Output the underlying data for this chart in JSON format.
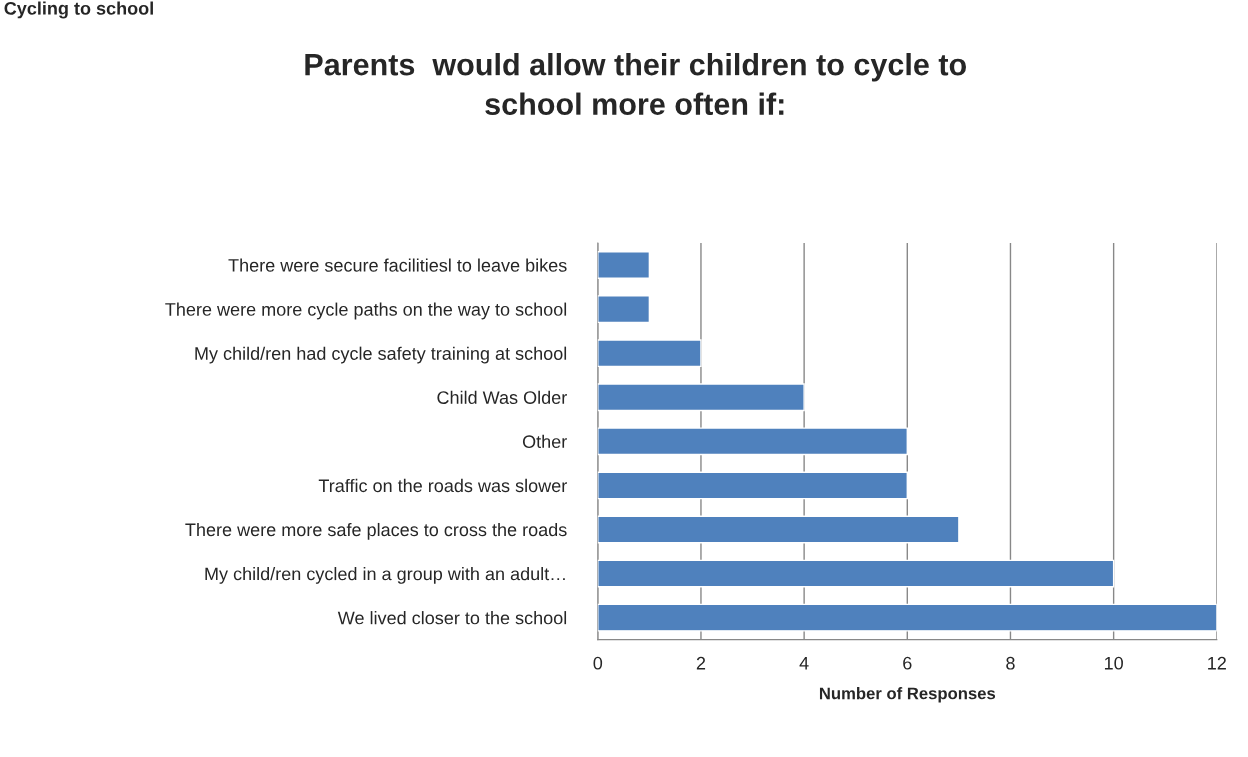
{
  "chart_data": {
    "type": "bar",
    "orientation": "horizontal",
    "title": "Parents  would allow their children to cycle to\nschool more often if:",
    "xlabel": "Number of Responses",
    "annotations": [
      "Cycling to school"
    ],
    "categories": [
      "There were secure facilitiesl to leave bikes",
      "There were more cycle paths on the way to school",
      "My child/ren had cycle safety training at school",
      "Child Was Older",
      "Other",
      "Traffic on the roads was slower",
      "There were more safe places to cross the roads",
      "My child/ren cycled in a group with an adult…",
      "We lived closer to the school"
    ],
    "values": [
      1,
      1,
      2,
      4,
      6,
      6,
      7,
      10,
      12
    ],
    "color": "#4f81bd",
    "xlim": [
      0,
      12
    ],
    "xticks": [
      0,
      2,
      4,
      6,
      8,
      10,
      12
    ],
    "grid": "x",
    "legend": false
  }
}
